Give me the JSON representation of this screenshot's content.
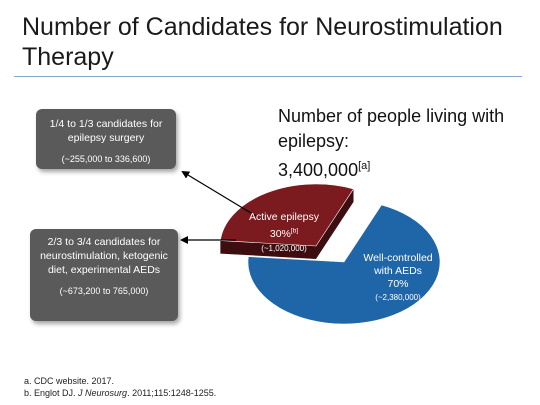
{
  "slide": {
    "title": "Number of Candidates for Neurostimulation Therapy"
  },
  "stat": {
    "heading": "Number of people living with epilepsy:",
    "value": "3,400,000",
    "ref": "[a]"
  },
  "callouts": {
    "surgery": {
      "label": "1/4 to 1/3 candidates for epilepsy surgery",
      "range": "(~255,000 to 336,600)"
    },
    "neuro": {
      "label": "2/3 to 3/4 candidates for neurostimulation, ketogenic diet, experimental AEDs",
      "range": "(~673,200 to 765,000)"
    }
  },
  "chart_data": {
    "type": "pie",
    "title": "",
    "total": 3400000,
    "slices": [
      {
        "name": "Active epilepsy",
        "percent": 30,
        "percent_label": "30%",
        "ref": "[b]",
        "count_label": "(~1,020,000)",
        "color": "#7b1a1f"
      },
      {
        "name": "Well-controlled with AEDs",
        "percent": 70,
        "percent_label": "70%",
        "count_label": "(~2,380,000)",
        "color": "#1f66a8"
      }
    ]
  },
  "colors": {
    "callout_bg": "#5a5a5a",
    "rule": "#7fa7c9"
  },
  "references": [
    "a. CDC website. 2017.",
    "b. Englot DJ. J Neurosurg. 2011;115:1248-1255."
  ]
}
